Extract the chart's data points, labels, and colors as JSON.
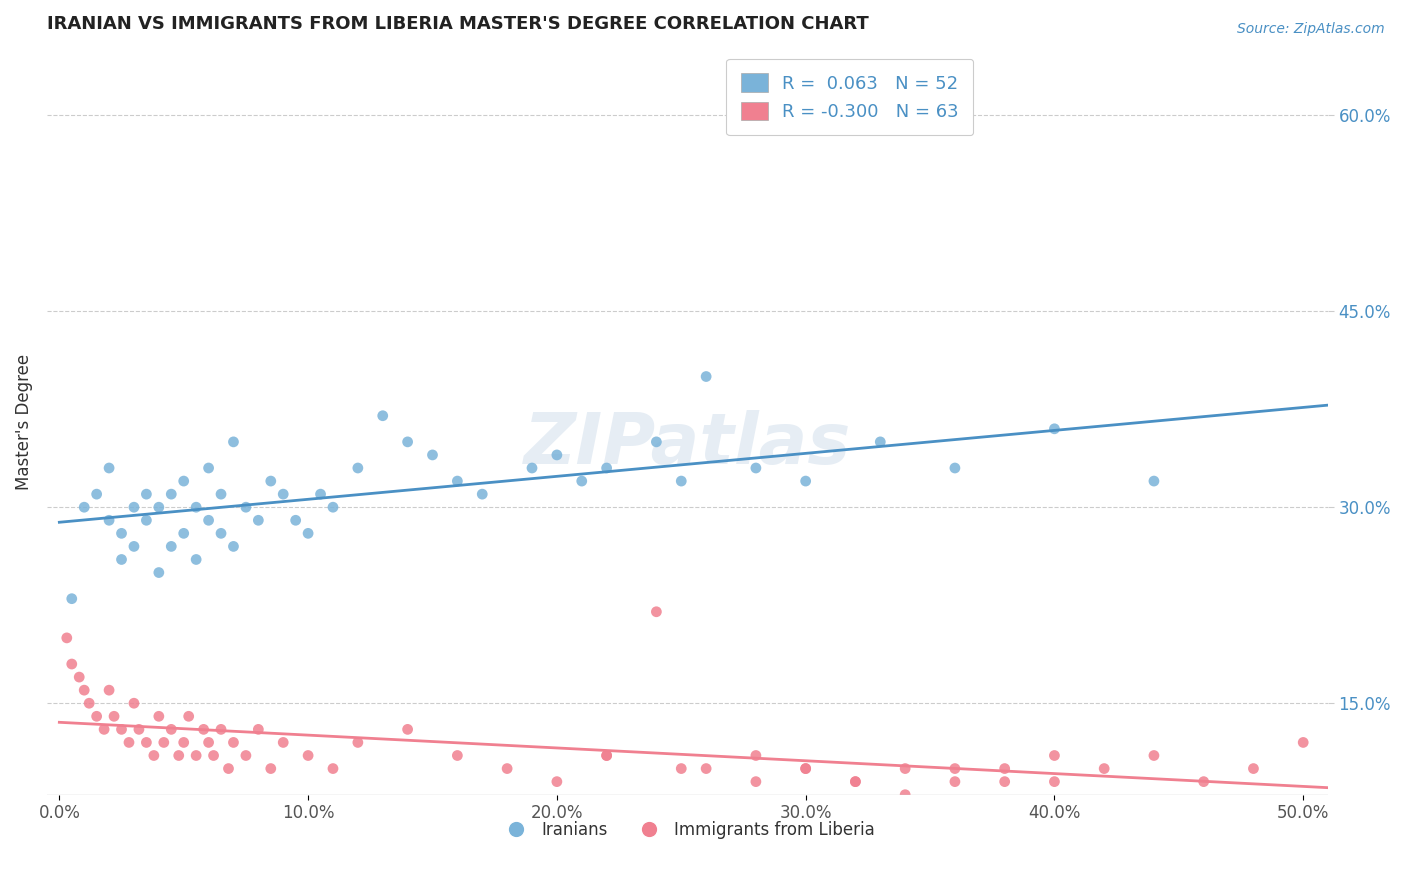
{
  "title": "IRANIAN VS IMMIGRANTS FROM LIBERIA MASTER'S DEGREE CORRELATION CHART",
  "source": "Source: ZipAtlas.com",
  "xlabel_vals": [
    0,
    10,
    20,
    30,
    40,
    50
  ],
  "ylabel_vals": [
    15,
    30,
    45,
    60
  ],
  "xlim": [
    -0.5,
    51
  ],
  "ylim": [
    8,
    65
  ],
  "watermark": "ZIPatlas",
  "iranian_color": "#7ab3d9",
  "liberia_color": "#f08090",
  "iranian_line_color": "#4a90c4",
  "liberia_line_color": "#f08090",
  "iranian_R": 0.063,
  "liberia_R": -0.3,
  "iranian_N": 52,
  "liberia_N": 63,
  "iranians_x": [
    0.5,
    1.0,
    1.5,
    2.0,
    2.0,
    2.5,
    3.0,
    3.0,
    3.5,
    3.5,
    4.0,
    4.0,
    4.5,
    4.5,
    5.0,
    5.0,
    5.5,
    5.5,
    6.0,
    6.0,
    6.5,
    6.5,
    7.0,
    7.0,
    7.5,
    8.0,
    8.5,
    9.0,
    9.5,
    10.0,
    10.5,
    11.0,
    12.0,
    13.0,
    14.0,
    15.0,
    16.0,
    17.0,
    19.0,
    20.0,
    21.0,
    22.0,
    24.0,
    25.0,
    26.0,
    28.0,
    30.0,
    33.0,
    36.0,
    40.0,
    44.0,
    2.5
  ],
  "iranians_y": [
    23.0,
    30.0,
    31.0,
    29.0,
    33.0,
    28.0,
    27.0,
    30.0,
    29.0,
    31.0,
    25.0,
    30.0,
    27.0,
    31.0,
    28.0,
    32.0,
    26.0,
    30.0,
    29.0,
    33.0,
    28.0,
    31.0,
    27.0,
    35.0,
    30.0,
    29.0,
    32.0,
    31.0,
    29.0,
    28.0,
    31.0,
    30.0,
    33.0,
    37.0,
    35.0,
    34.0,
    32.0,
    31.0,
    33.0,
    34.0,
    32.0,
    33.0,
    35.0,
    32.0,
    40.0,
    33.0,
    32.0,
    35.0,
    33.0,
    36.0,
    32.0,
    26.0
  ],
  "liberia_x": [
    0.3,
    0.5,
    0.8,
    1.0,
    1.2,
    1.5,
    1.8,
    2.0,
    2.2,
    2.5,
    2.8,
    3.0,
    3.2,
    3.5,
    3.8,
    4.0,
    4.2,
    4.5,
    4.8,
    5.0,
    5.2,
    5.5,
    5.8,
    6.0,
    6.2,
    6.5,
    6.8,
    7.0,
    7.5,
    8.0,
    8.5,
    9.0,
    10.0,
    11.0,
    12.0,
    14.0,
    16.0,
    18.0,
    20.0,
    22.0,
    25.0,
    28.0,
    30.0,
    32.0,
    34.0,
    36.0,
    38.0,
    40.0,
    42.0,
    44.0,
    46.0,
    48.0,
    50.0,
    22.0,
    24.0,
    26.0,
    28.0,
    30.0,
    32.0,
    34.0,
    36.0,
    38.0,
    40.0
  ],
  "liberia_y": [
    20.0,
    18.0,
    17.0,
    16.0,
    15.0,
    14.0,
    13.0,
    16.0,
    14.0,
    13.0,
    12.0,
    15.0,
    13.0,
    12.0,
    11.0,
    14.0,
    12.0,
    13.0,
    11.0,
    12.0,
    14.0,
    11.0,
    13.0,
    12.0,
    11.0,
    13.0,
    10.0,
    12.0,
    11.0,
    13.0,
    10.0,
    12.0,
    11.0,
    10.0,
    12.0,
    13.0,
    11.0,
    10.0,
    9.0,
    11.0,
    10.0,
    9.0,
    10.0,
    9.0,
    8.0,
    10.0,
    9.0,
    11.0,
    10.0,
    11.0,
    9.0,
    10.0,
    12.0,
    11.0,
    22.0,
    10.0,
    11.0,
    10.0,
    9.0,
    10.0,
    9.0,
    10.0,
    9.0
  ]
}
